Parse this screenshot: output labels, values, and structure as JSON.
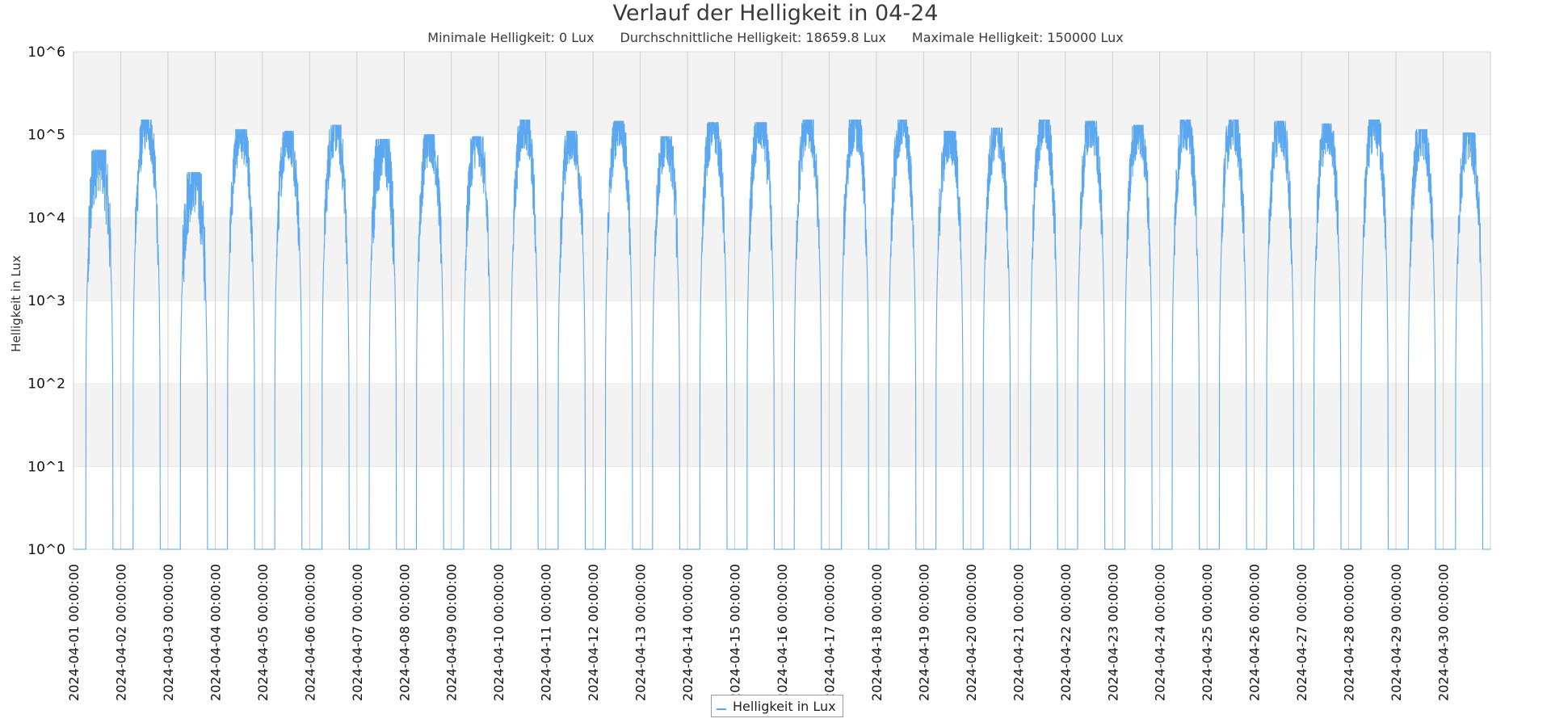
{
  "chart_data": {
    "type": "line",
    "title": "Verlauf der Helligkeit in 04-24",
    "subtitle": [
      "Minimale Helligkeit: 0 Lux",
      "Durchschnittliche Helligkeit: 18659.8 Lux",
      "Maximale Helligkeit: 150000 Lux"
    ],
    "xlabel": "",
    "ylabel": "Helligkeit in Lux",
    "y_scale": "log",
    "ylim": [
      1,
      1000000
    ],
    "y_ticks": [
      "10^0",
      "10^1",
      "10^2",
      "10^3",
      "10^4",
      "10^5",
      "10^6"
    ],
    "xlim": [
      "2024-04-01 00:00",
      "2024-05-01 00:00"
    ],
    "x_ticks": [
      "2024-04-01 00:00:00",
      "2024-04-02 00:00:00",
      "2024-04-03 00:00:00",
      "2024-04-04 00:00:00",
      "2024-04-05 00:00:00",
      "2024-04-06 00:00:00",
      "2024-04-07 00:00:00",
      "2024-04-08 00:00:00",
      "2024-04-09 00:00:00",
      "2024-04-10 00:00:00",
      "2024-04-11 00:00:00",
      "2024-04-12 00:00:00",
      "2024-04-13 00:00:00",
      "2024-04-14 00:00:00",
      "2024-04-15 00:00:00",
      "2024-04-16 00:00:00",
      "2024-04-17 00:00:00",
      "2024-04-18 00:00:00",
      "2024-04-19 00:00:00",
      "2024-04-20 00:00:00",
      "2024-04-21 00:00:00",
      "2024-04-22 00:00:00",
      "2024-04-23 00:00:00",
      "2024-04-24 00:00:00",
      "2024-04-25 00:00:00",
      "2024-04-26 00:00:00",
      "2024-04-27 00:00:00",
      "2024-04-28 00:00:00",
      "2024-04-29 00:00:00",
      "2024-04-30 00:00:00"
    ],
    "grid": true,
    "legend_position": "bottom-center",
    "series": [
      {
        "name": "Helligkeit in Lux",
        "color": "#5ca8f0",
        "daily_peaks": [
          {
            "date": "2024-04-01",
            "peak_lux": 65000
          },
          {
            "date": "2024-04-02",
            "peak_lux": 150000
          },
          {
            "date": "2024-04-03",
            "peak_lux": 35000
          },
          {
            "date": "2024-04-04",
            "peak_lux": 115000
          },
          {
            "date": "2024-04-05",
            "peak_lux": 110000
          },
          {
            "date": "2024-04-06",
            "peak_lux": 130000
          },
          {
            "date": "2024-04-07",
            "peak_lux": 88000
          },
          {
            "date": "2024-04-08",
            "peak_lux": 100000
          },
          {
            "date": "2024-04-09",
            "peak_lux": 95000
          },
          {
            "date": "2024-04-10",
            "peak_lux": 150000
          },
          {
            "date": "2024-04-11",
            "peak_lux": 110000
          },
          {
            "date": "2024-04-12",
            "peak_lux": 145000
          },
          {
            "date": "2024-04-13",
            "peak_lux": 95000
          },
          {
            "date": "2024-04-14",
            "peak_lux": 140000
          },
          {
            "date": "2024-04-15",
            "peak_lux": 140000
          },
          {
            "date": "2024-04-16",
            "peak_lux": 150000
          },
          {
            "date": "2024-04-17",
            "peak_lux": 150000
          },
          {
            "date": "2024-04-18",
            "peak_lux": 150000
          },
          {
            "date": "2024-04-19",
            "peak_lux": 110000
          },
          {
            "date": "2024-04-20",
            "peak_lux": 120000
          },
          {
            "date": "2024-04-21",
            "peak_lux": 150000
          },
          {
            "date": "2024-04-22",
            "peak_lux": 145000
          },
          {
            "date": "2024-04-23",
            "peak_lux": 130000
          },
          {
            "date": "2024-04-24",
            "peak_lux": 150000
          },
          {
            "date": "2024-04-25",
            "peak_lux": 150000
          },
          {
            "date": "2024-04-26",
            "peak_lux": 145000
          },
          {
            "date": "2024-04-27",
            "peak_lux": 135000
          },
          {
            "date": "2024-04-28",
            "peak_lux": 150000
          },
          {
            "date": "2024-04-29",
            "peak_lux": 115000
          },
          {
            "date": "2024-04-30",
            "peak_lux": 105000
          }
        ],
        "sunrise_time": "06:15",
        "sunset_time": "20:00",
        "night_value_lux": 0
      }
    ]
  }
}
